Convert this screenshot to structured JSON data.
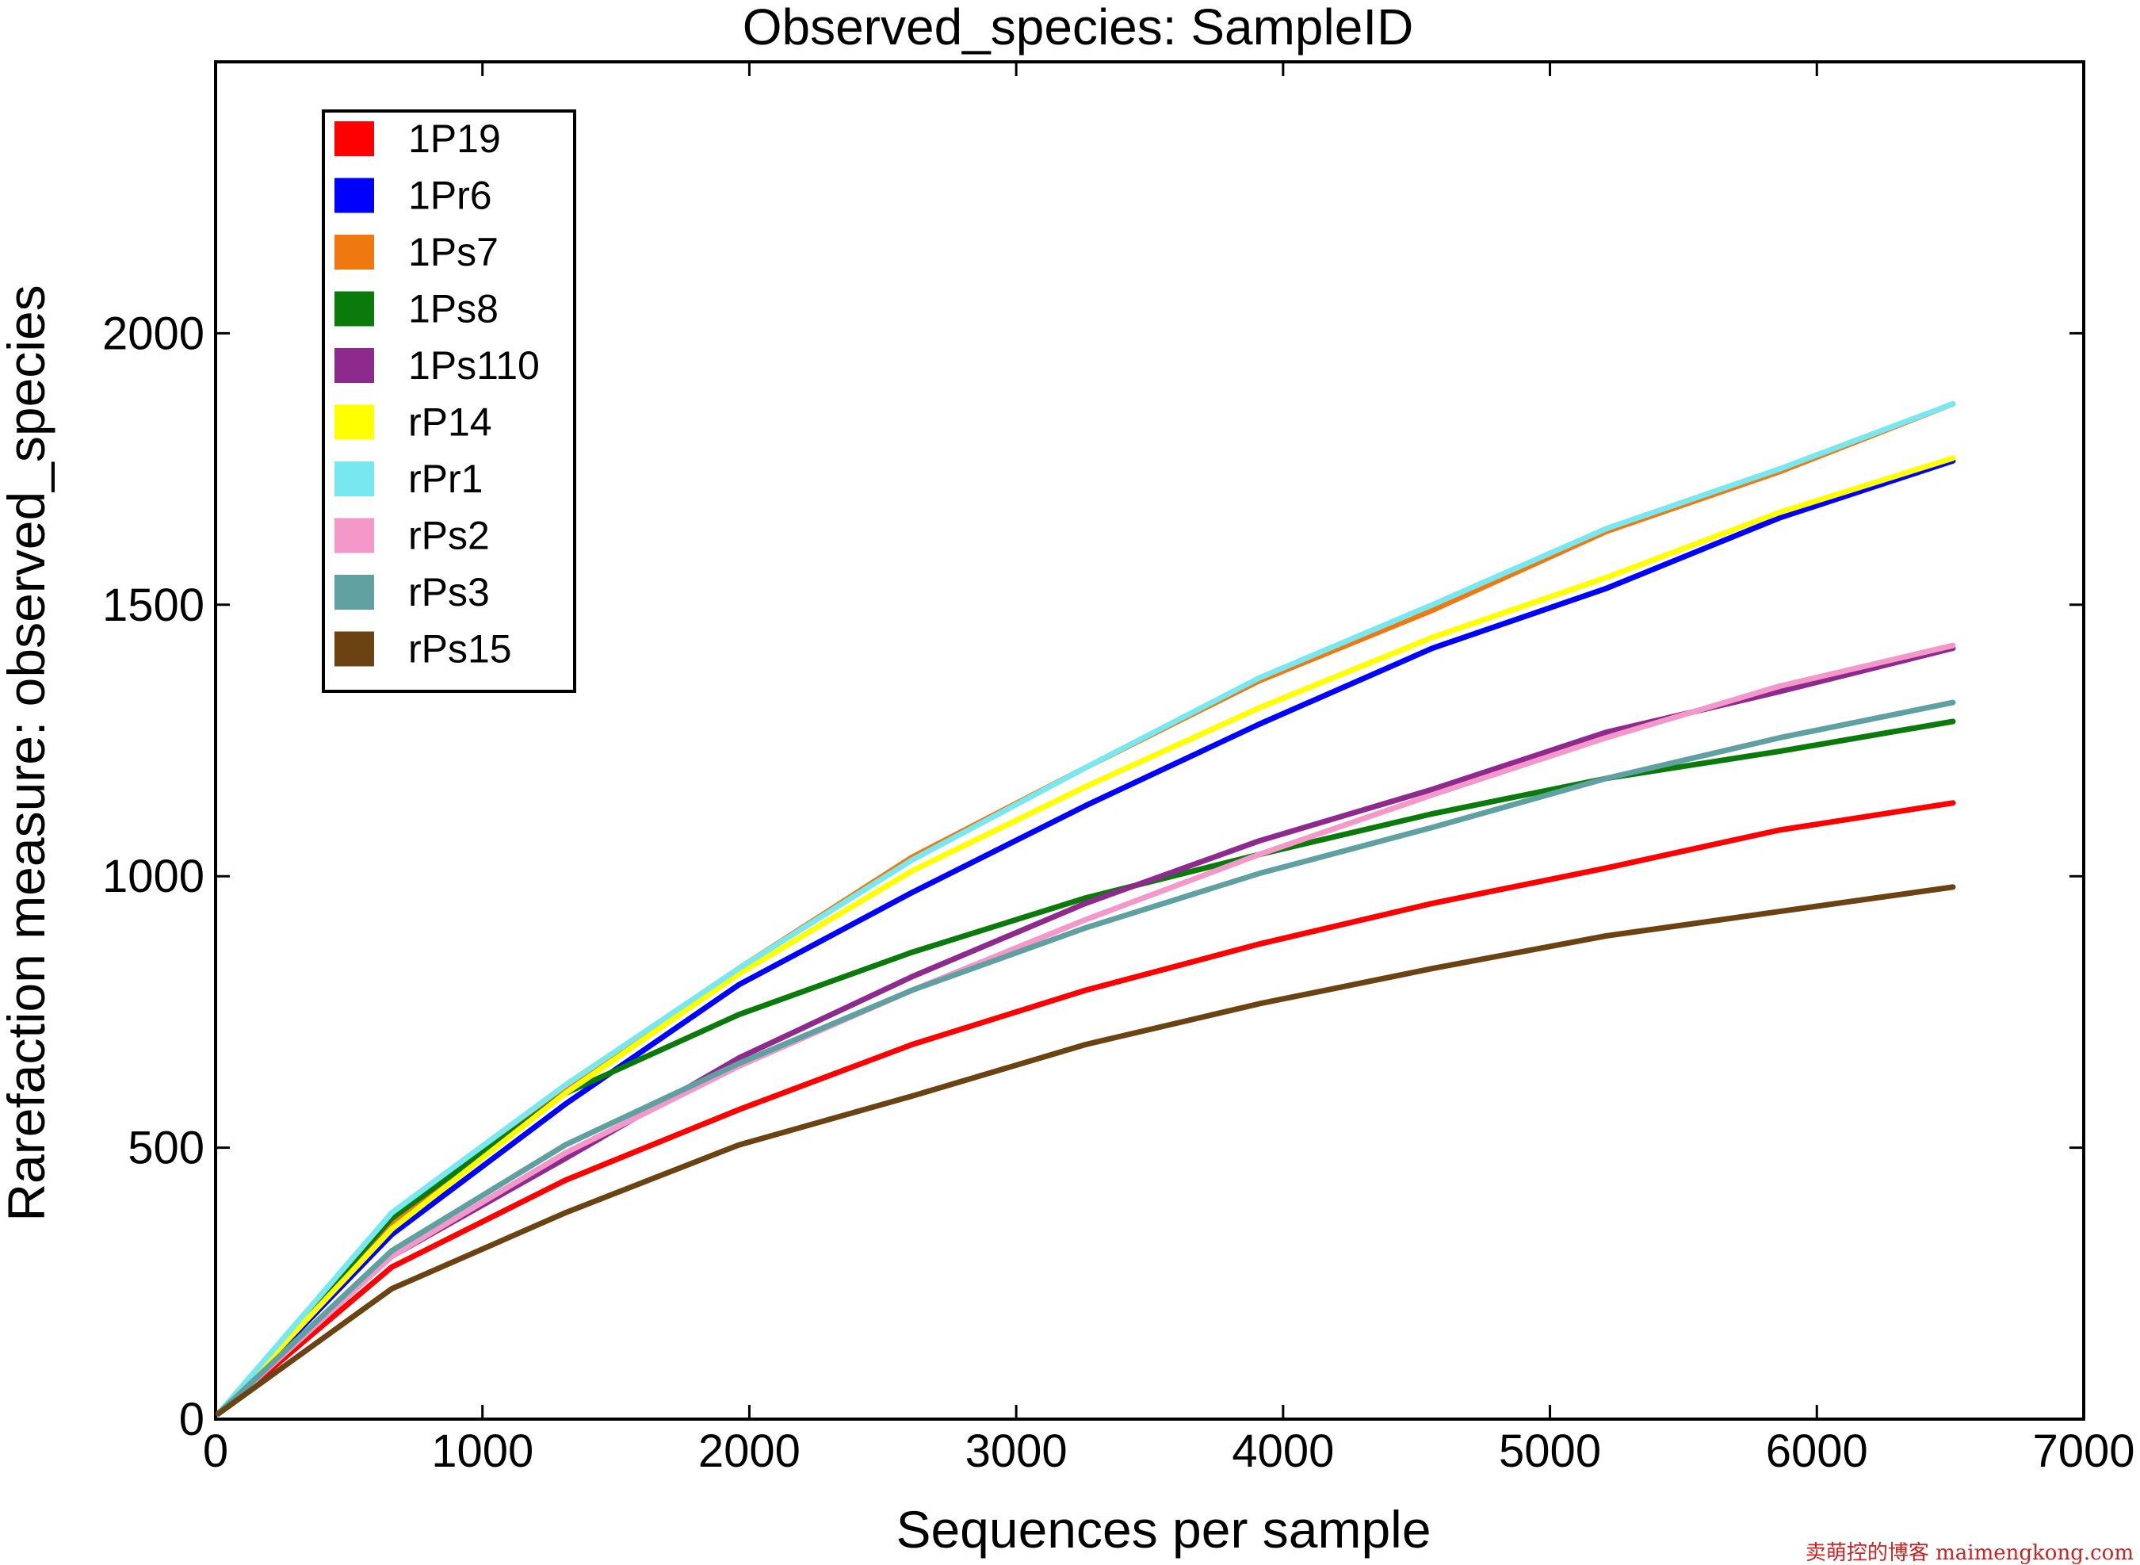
{
  "chart_data": {
    "type": "line",
    "title": "Observed_species: SampleID",
    "xlabel": "Sequences per sample",
    "ylabel": "Rarefaction measure: observed_species",
    "xlim": [
      0,
      7000
    ],
    "ylim": [
      0,
      2500
    ],
    "xticks": [
      0,
      1000,
      2000,
      3000,
      4000,
      5000,
      6000,
      7000
    ],
    "yticks": [
      0,
      500,
      1000,
      1500,
      2000
    ],
    "grid": false,
    "legend_position": "top-left",
    "x": [
      10,
      660,
      1310,
      1960,
      2610,
      3260,
      3910,
      4560,
      5210,
      5860,
      6510
    ],
    "series": [
      {
        "name": "1P19",
        "color": "#ff0000",
        "values": [
          10,
          280,
          440,
          570,
          690,
          790,
          875,
          950,
          1015,
          1085,
          1135
        ]
      },
      {
        "name": "1Pr6",
        "color": "#0000ff",
        "values": [
          10,
          340,
          580,
          800,
          970,
          1130,
          1280,
          1420,
          1530,
          1660,
          1765
        ]
      },
      {
        "name": "1Ps7",
        "color": "#f07810",
        "values": [
          10,
          360,
          610,
          830,
          1035,
          1200,
          1360,
          1490,
          1635,
          1745,
          1870
        ]
      },
      {
        "name": "1Ps8",
        "color": "#0a7a0a",
        "values": [
          10,
          370,
          600,
          745,
          860,
          960,
          1040,
          1115,
          1180,
          1230,
          1285
        ]
      },
      {
        "name": "1Ps110",
        "color": "#8e2a8e",
        "values": [
          10,
          300,
          480,
          665,
          815,
          950,
          1065,
          1160,
          1265,
          1340,
          1420
        ]
      },
      {
        "name": "rP14",
        "color": "#ffff00",
        "values": [
          10,
          350,
          600,
          820,
          1010,
          1165,
          1310,
          1440,
          1550,
          1670,
          1770
        ]
      },
      {
        "name": "rPr1",
        "color": "#78e8f0",
        "values": [
          10,
          380,
          615,
          830,
          1030,
          1200,
          1365,
          1500,
          1640,
          1750,
          1870
        ]
      },
      {
        "name": "rPs2",
        "color": "#f398c8",
        "values": [
          10,
          300,
          490,
          650,
          790,
          920,
          1040,
          1150,
          1255,
          1350,
          1425
        ]
      },
      {
        "name": "rPs3",
        "color": "#5fa0a0",
        "values": [
          10,
          310,
          505,
          655,
          790,
          905,
          1005,
          1090,
          1180,
          1255,
          1320
        ]
      },
      {
        "name": "rPs15",
        "color": "#6b4212",
        "values": [
          10,
          240,
          380,
          505,
          595,
          690,
          765,
          830,
          890,
          935,
          980
        ]
      }
    ]
  },
  "watermark": "卖萌控的博客  maimengkong.com"
}
